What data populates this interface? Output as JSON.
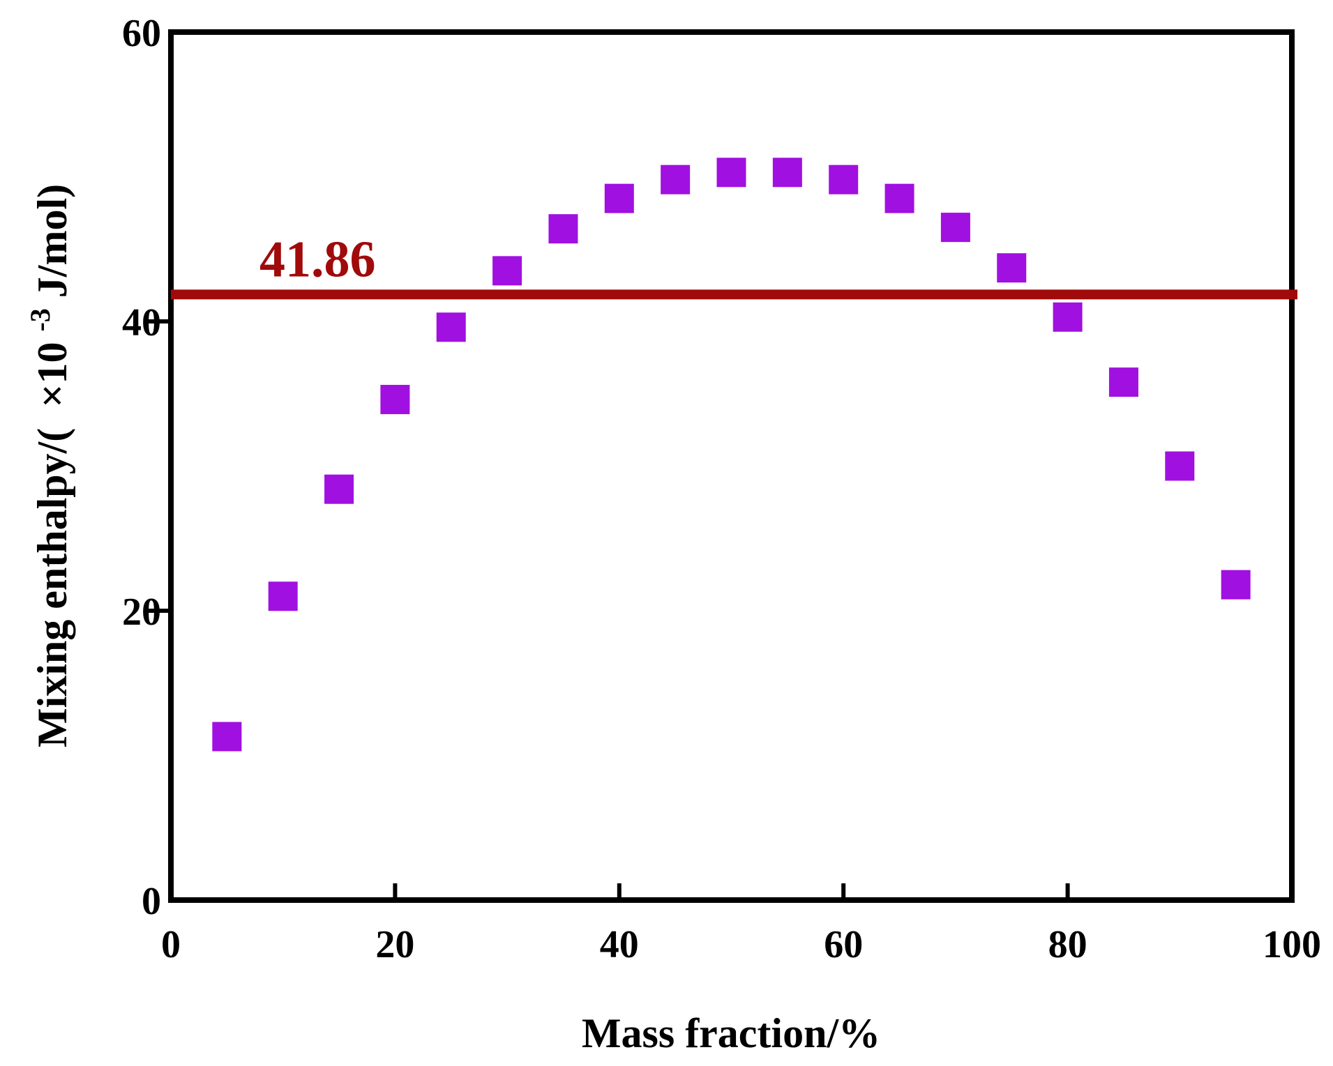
{
  "chart_data": {
    "type": "scatter",
    "title": "",
    "xlabel": "Mass fraction/%",
    "ylabel_main": "Mixing enthalpy/(",
    "ylabel_mult": "×10",
    "ylabel_exp": "-3",
    "ylabel_unit": "J/mol)",
    "xlim": [
      0,
      100
    ],
    "ylim": [
      0,
      60
    ],
    "xticks": [
      "0",
      "20",
      "40",
      "60",
      "80",
      "100"
    ],
    "yticks": [
      "0",
      "20",
      "40",
      "60"
    ],
    "grid": false,
    "series": [
      {
        "name": "Mixing enthalpy",
        "marker": "square",
        "color": "#a010e0",
        "x": [
          5,
          10,
          15,
          20,
          25,
          30,
          35,
          40,
          45,
          50,
          55,
          60,
          65,
          70,
          75,
          80,
          85,
          90,
          95
        ],
        "y": [
          11.3,
          21.0,
          28.4,
          34.6,
          39.6,
          43.5,
          46.4,
          48.5,
          49.8,
          50.3,
          50.3,
          49.8,
          48.5,
          46.5,
          43.7,
          40.3,
          35.8,
          30.0,
          21.8
        ]
      }
    ],
    "reference_line": {
      "value": 41.86,
      "label": "41.86",
      "color": "#a00a0a"
    }
  }
}
